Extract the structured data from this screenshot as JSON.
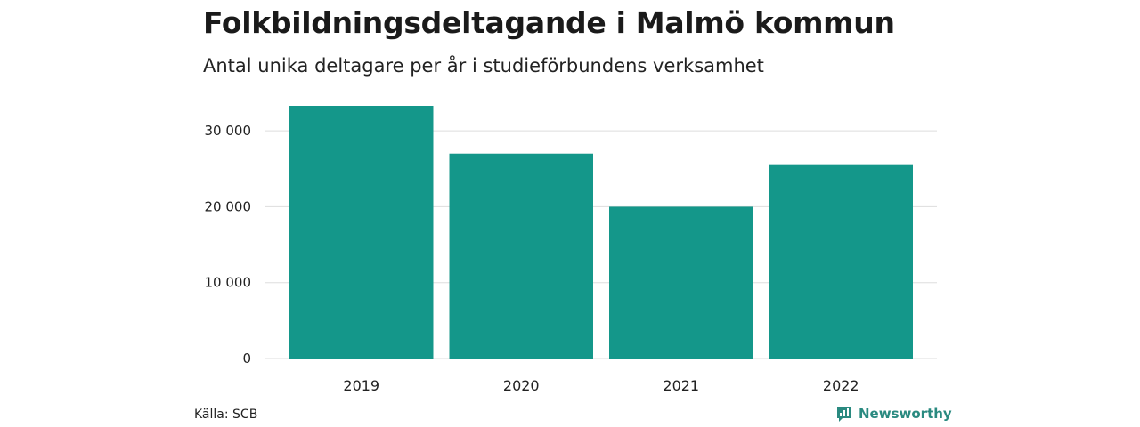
{
  "title": "Folkbildningsdeltagande i Malmö kommun",
  "subtitle": "Antal unika deltagare per år i studieförbundens verksamhet",
  "source": "Källa: SCB",
  "brand": {
    "name": "Newsworthy",
    "icon": "newsworthy-logo-icon"
  },
  "colors": {
    "bar": "#14978a",
    "grid": "#dddddd",
    "brand": "#2a8a80"
  },
  "chart_data": {
    "type": "bar",
    "categories": [
      "2019",
      "2020",
      "2021",
      "2022"
    ],
    "values": [
      33300,
      27000,
      20000,
      25600
    ],
    "title": "Folkbildningsdeltagande i Malmö kommun",
    "subtitle": "Antal unika deltagare per år i studieförbundens verksamhet",
    "xlabel": "",
    "ylabel": "",
    "ylim": [
      0,
      33300
    ],
    "yticks": [
      0,
      10000,
      20000,
      30000
    ],
    "ytick_labels": [
      "0",
      "10 000",
      "20 000",
      "30 000"
    ],
    "grid": true,
    "legend": "none"
  }
}
